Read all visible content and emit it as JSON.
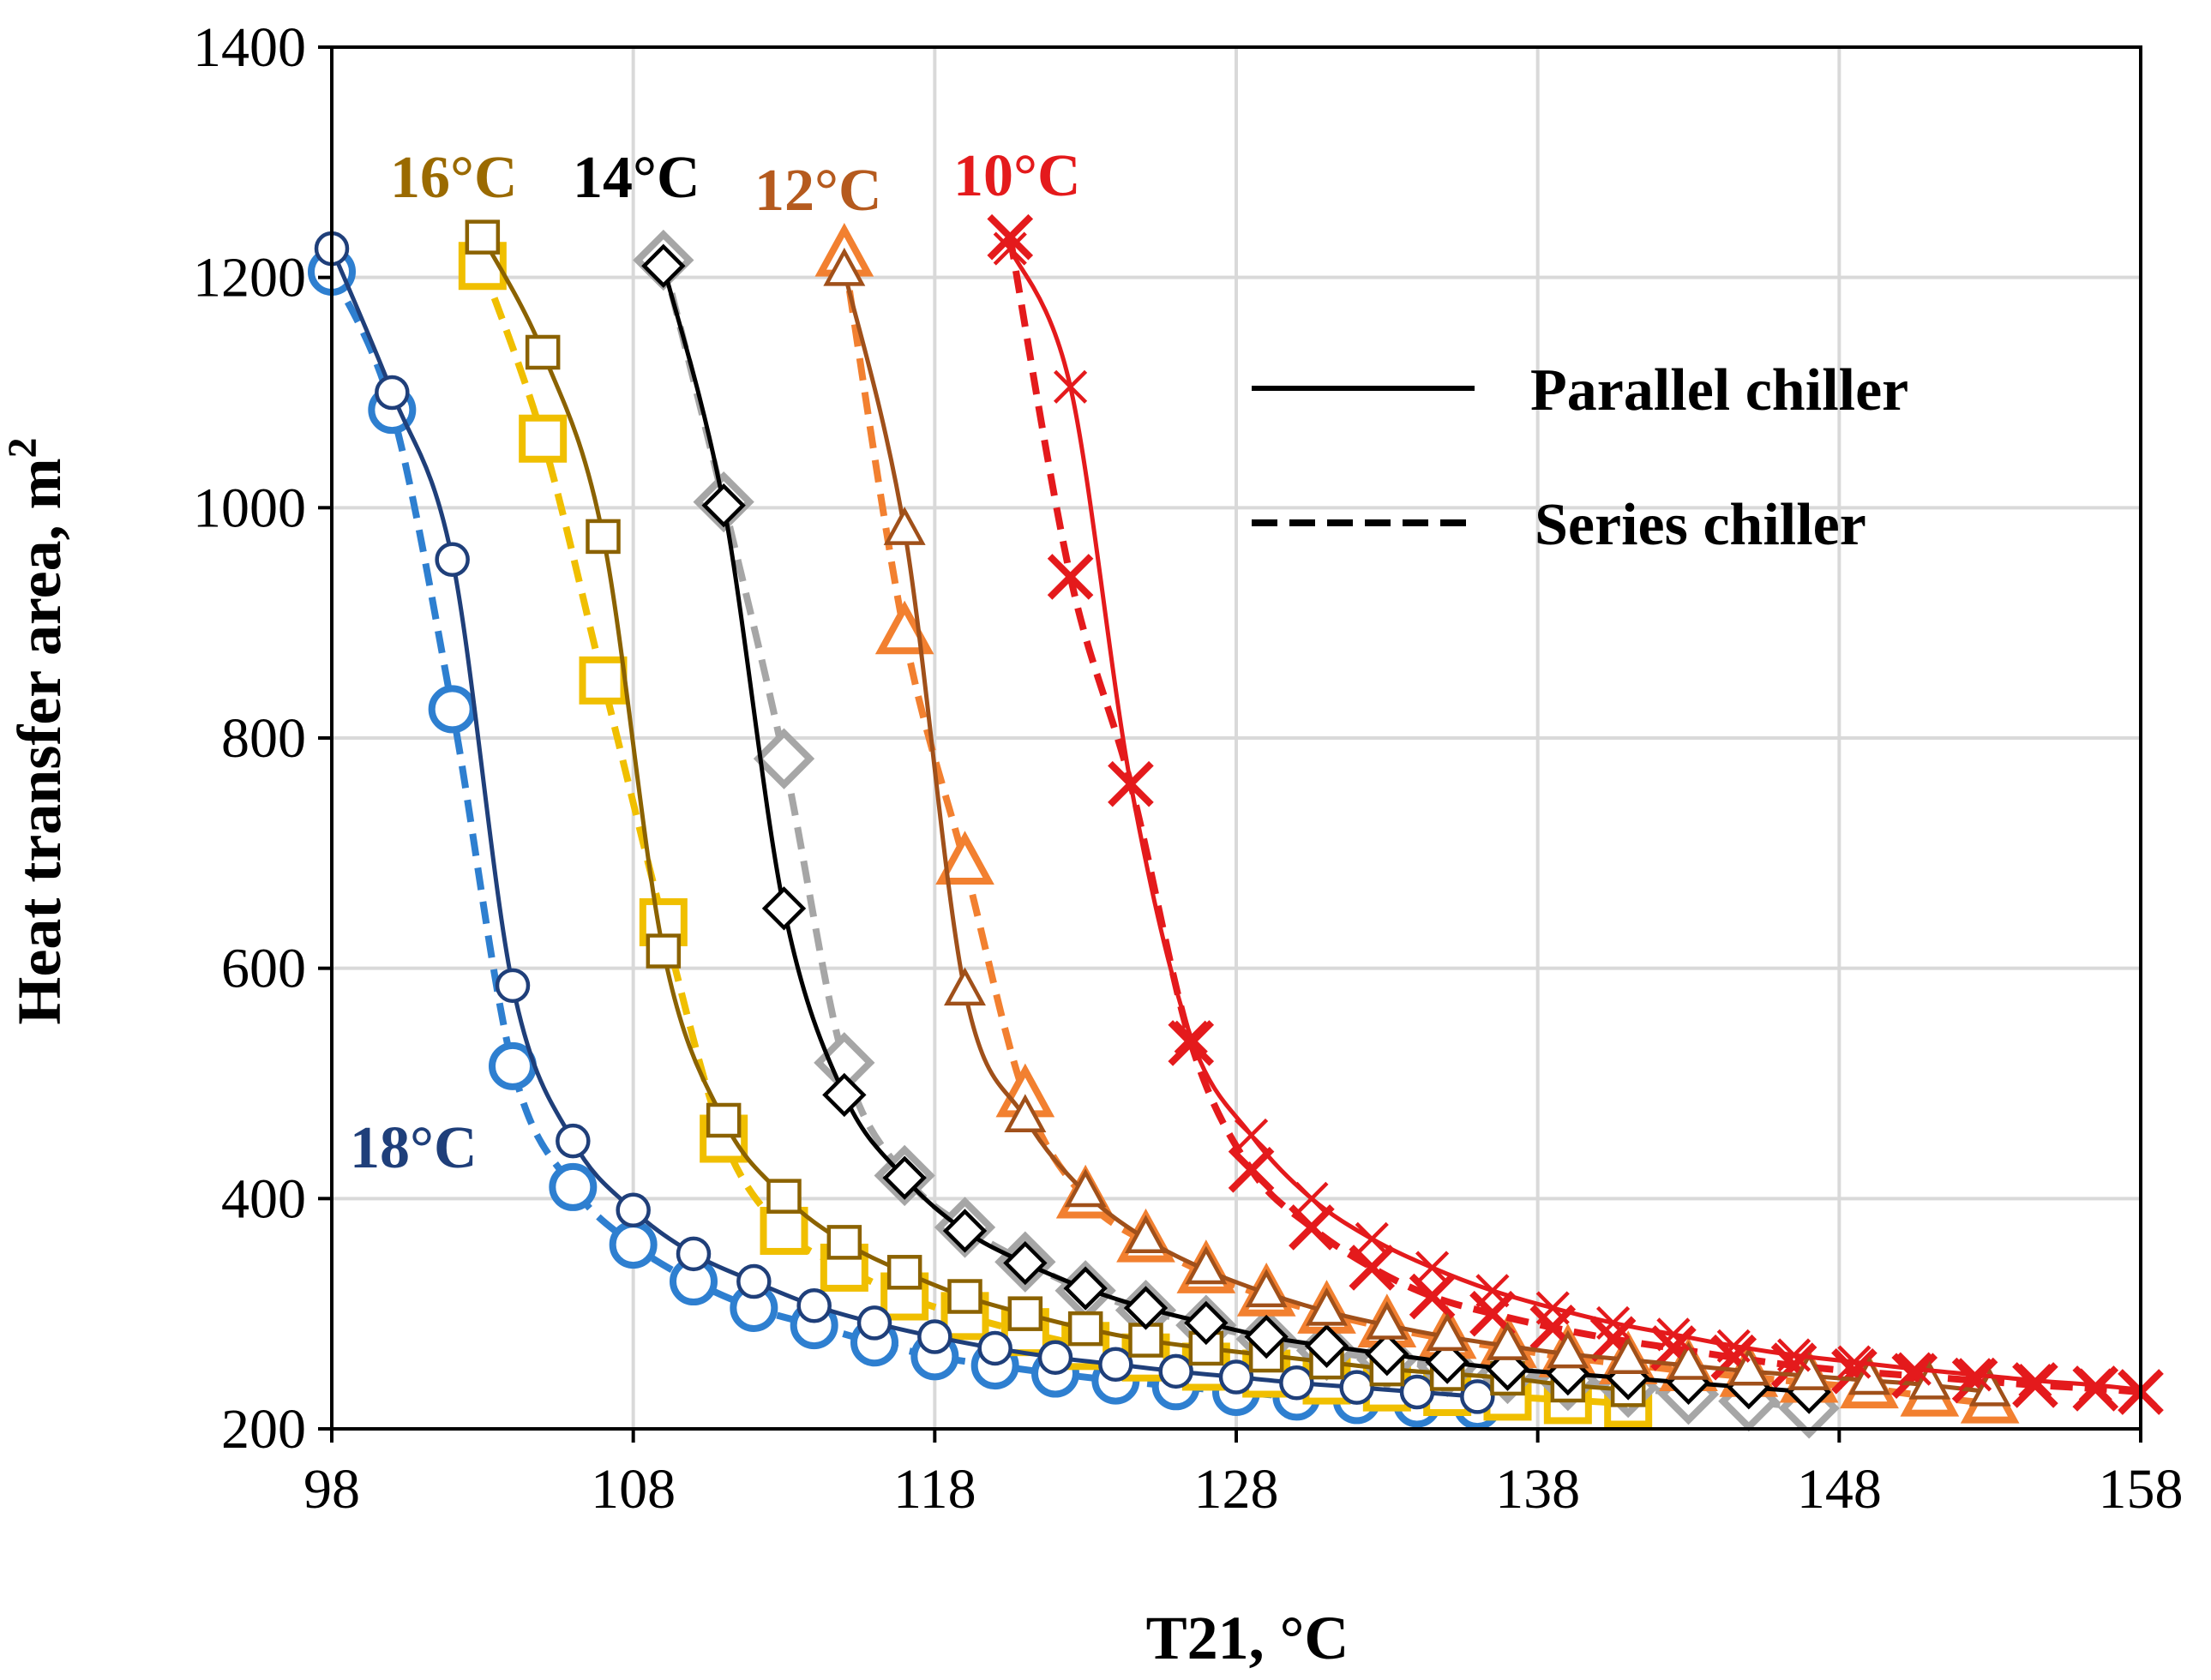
{
  "chart_data": {
    "type": "line",
    "xlabel": "T21, °C",
    "ylabel": "Heat transfer area, m",
    "ylabel_superscript": "2",
    "xlim": [
      98,
      158
    ],
    "ylim": [
      200,
      1400
    ],
    "xticks": [
      98,
      108,
      118,
      128,
      138,
      148,
      158
    ],
    "yticks": [
      200,
      400,
      600,
      800,
      1000,
      1200,
      1400
    ],
    "grid": true,
    "legend": {
      "position": "top-right",
      "entries": [
        {
          "label": "Parallel chiller",
          "style": "solid"
        },
        {
          "label": "Series chiller",
          "style": "dashed"
        }
      ]
    },
    "series": [
      {
        "name": "18°C",
        "label_color": "#1f3f7a",
        "parallel": {
          "color": "#1f3f7a",
          "marker": "circle",
          "x": [
            98,
            100,
            102,
            104,
            106,
            108,
            110,
            112,
            114,
            116,
            118,
            120,
            122,
            124,
            126,
            128,
            130,
            132,
            134,
            136
          ],
          "y": [
            1225,
            1100,
            955,
            585,
            450,
            390,
            352,
            328,
            307,
            292,
            280,
            270,
            262,
            256,
            250,
            245,
            240,
            236,
            232,
            228
          ]
        },
        "series": {
          "color": "#2e7fd0",
          "marker": "circle",
          "x": [
            98,
            100,
            102,
            104,
            106,
            108,
            110,
            112,
            114,
            116,
            118,
            120,
            122,
            124,
            126,
            128,
            130,
            132,
            134,
            136
          ],
          "y": [
            1205,
            1085,
            825,
            515,
            410,
            360,
            328,
            305,
            290,
            275,
            263,
            255,
            248,
            242,
            237,
            232,
            228,
            225,
            222,
            220
          ]
        }
      },
      {
        "name": "16°C",
        "label_color": "#9a6a00",
        "parallel": {
          "color": "#8b6200",
          "marker": "square",
          "x": [
            103,
            105,
            107,
            109,
            111,
            113,
            115,
            117,
            119,
            121,
            123,
            125,
            127,
            129,
            131,
            133,
            135,
            137,
            139,
            141
          ],
          "y": [
            1235,
            1135,
            975,
            615,
            468,
            402,
            362,
            336,
            315,
            300,
            287,
            277,
            270,
            264,
            258,
            252,
            248,
            244,
            238,
            234
          ]
        },
        "series": {
          "color": "#f0bf00",
          "marker": "square",
          "x": [
            103,
            105,
            107,
            109,
            111,
            113,
            115,
            117,
            119,
            121,
            123,
            125,
            127,
            129,
            131,
            133,
            135,
            137,
            139,
            141
          ],
          "y": [
            1210,
            1060,
            850,
            640,
            452,
            372,
            340,
            315,
            298,
            284,
            272,
            262,
            254,
            248,
            242,
            236,
            232,
            228,
            225,
            222
          ]
        }
      },
      {
        "name": "14°C",
        "label_color": "#000000",
        "parallel": {
          "color": "#000000",
          "marker": "diamond",
          "x": [
            109,
            111,
            113,
            115,
            117,
            119,
            121,
            123,
            125,
            127,
            129,
            131,
            133,
            135,
            137,
            139,
            141,
            143,
            145,
            147
          ],
          "y": [
            1210,
            1002,
            652,
            490,
            418,
            372,
            344,
            322,
            305,
            292,
            280,
            272,
            265,
            258,
            252,
            248,
            244,
            240,
            236,
            232
          ]
        },
        "series": {
          "color": "#a6a6a6",
          "marker": "diamond",
          "x": [
            109,
            111,
            113,
            115,
            117,
            119,
            121,
            123,
            125,
            127,
            129,
            131,
            133,
            135,
            137,
            139,
            141,
            143,
            145,
            147
          ],
          "y": [
            1215,
            1005,
            782,
            518,
            420,
            375,
            345,
            320,
            303,
            290,
            278,
            268,
            260,
            254,
            248,
            242,
            236,
            230,
            224,
            218
          ]
        }
      },
      {
        "name": "12°C",
        "label_color": "#b55a1e",
        "parallel": {
          "color": "#a0501a",
          "marker": "triangle",
          "x": [
            115,
            117,
            119,
            121,
            123,
            125,
            127,
            129,
            131,
            133,
            135,
            137,
            139,
            141,
            143,
            145,
            147,
            149,
            151,
            153
          ],
          "y": [
            1205,
            980,
            580,
            470,
            405,
            365,
            338,
            318,
            302,
            290,
            280,
            272,
            265,
            260,
            255,
            250,
            246,
            242,
            238,
            232
          ]
        },
        "series": {
          "color": "#f28030",
          "marker": "triangle",
          "x": [
            115,
            117,
            119,
            121,
            123,
            125,
            127,
            129,
            131,
            133,
            135,
            137,
            139,
            141,
            143,
            145,
            147,
            149,
            151,
            153
          ],
          "y": [
            1218,
            890,
            690,
            488,
            400,
            362,
            335,
            315,
            300,
            288,
            278,
            270,
            262,
            256,
            250,
            245,
            240,
            235,
            228,
            222
          ]
        }
      },
      {
        "name": "10°C",
        "label_color": "#e41a1c",
        "parallel": {
          "color": "#e41a1c",
          "marker": "x",
          "x": [
            120.5,
            122.5,
            124.5,
            126.5,
            128.5,
            130.5,
            132.5,
            134.5,
            136.5,
            138.5,
            140.5,
            142.5,
            144.5,
            146.5,
            148.5,
            150.5,
            152.5,
            154.5,
            156.5,
            158
          ],
          "y": [
            1225,
            1105,
            760,
            540,
            455,
            400,
            365,
            340,
            320,
            305,
            292,
            282,
            272,
            264,
            258,
            252,
            247,
            242,
            238,
            234
          ]
        },
        "series": {
          "color": "#e41a1c",
          "marker": "x",
          "x": [
            120.5,
            122.5,
            124.5,
            126.5,
            128.5,
            130.5,
            132.5,
            134.5,
            136.5,
            138.5,
            140.5,
            142.5,
            144.5,
            146.5,
            148.5,
            150.5,
            152.5,
            154.5,
            156.5,
            158
          ],
          "y": [
            1235,
            940,
            760,
            535,
            425,
            375,
            340,
            315,
            300,
            288,
            278,
            270,
            262,
            255,
            250,
            246,
            242,
            238,
            235,
            232
          ]
        }
      }
    ],
    "series_labels": [
      {
        "text": "16°C",
        "color": "#9a6a00"
      },
      {
        "text": "14°C",
        "color": "#000000"
      },
      {
        "text": "12°C",
        "color": "#b55a1e"
      },
      {
        "text": "10°C",
        "color": "#e41a1c"
      },
      {
        "text": "18°C",
        "color": "#1f3f7a"
      }
    ]
  }
}
